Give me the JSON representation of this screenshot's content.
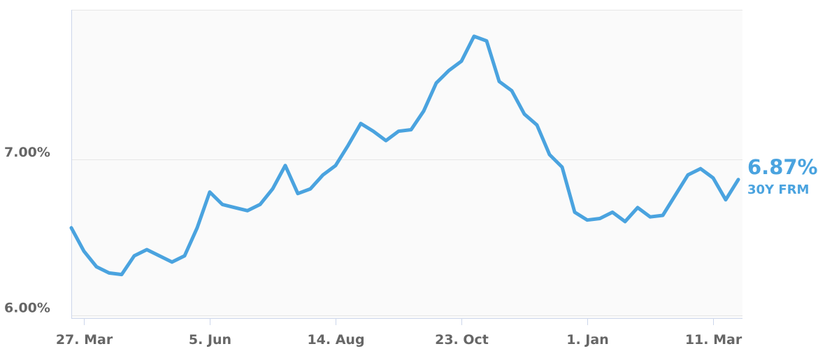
{
  "chart_data": {
    "type": "line",
    "title": "",
    "xlabel": "",
    "ylabel": "",
    "ylim": [
      5.98,
      7.96
    ],
    "y_ticks": [
      {
        "value": 6.0,
        "label": "6.00%"
      },
      {
        "value": 7.0,
        "label": "7.00%"
      }
    ],
    "x_ticks": [
      {
        "week": 1,
        "label": "27. Mar"
      },
      {
        "week": 11,
        "label": "5. Jun"
      },
      {
        "week": 21,
        "label": "14. Aug"
      },
      {
        "week": 31,
        "label": "23. Oct"
      },
      {
        "week": 41,
        "label": "1. Jan"
      },
      {
        "week": 51,
        "label": "11. Mar"
      }
    ],
    "grid": {
      "horizontal": true,
      "vertical": false
    },
    "colors": {
      "series": "#4aa3df",
      "grid": "#e6e6e6",
      "plot_bg": "#fafafa",
      "axis": "#ccd6eb",
      "tick_text": "#666666"
    },
    "series": [
      {
        "name": "30Y FRM",
        "color": "#4aa3df",
        "end_label": "6.87%",
        "values": [
          6.56,
          6.41,
          6.31,
          6.27,
          6.26,
          6.38,
          6.42,
          6.38,
          6.34,
          6.38,
          6.56,
          6.79,
          6.71,
          6.69,
          6.67,
          6.71,
          6.81,
          6.96,
          6.78,
          6.81,
          6.9,
          6.96,
          7.09,
          7.23,
          7.18,
          7.12,
          7.18,
          7.19,
          7.31,
          7.49,
          7.57,
          7.63,
          7.79,
          7.76,
          7.5,
          7.44,
          7.29,
          7.22,
          7.03,
          6.95,
          6.66,
          6.61,
          6.62,
          6.66,
          6.6,
          6.69,
          6.63,
          6.64,
          6.77,
          6.9,
          6.94,
          6.88,
          6.74,
          6.87
        ]
      }
    ]
  }
}
